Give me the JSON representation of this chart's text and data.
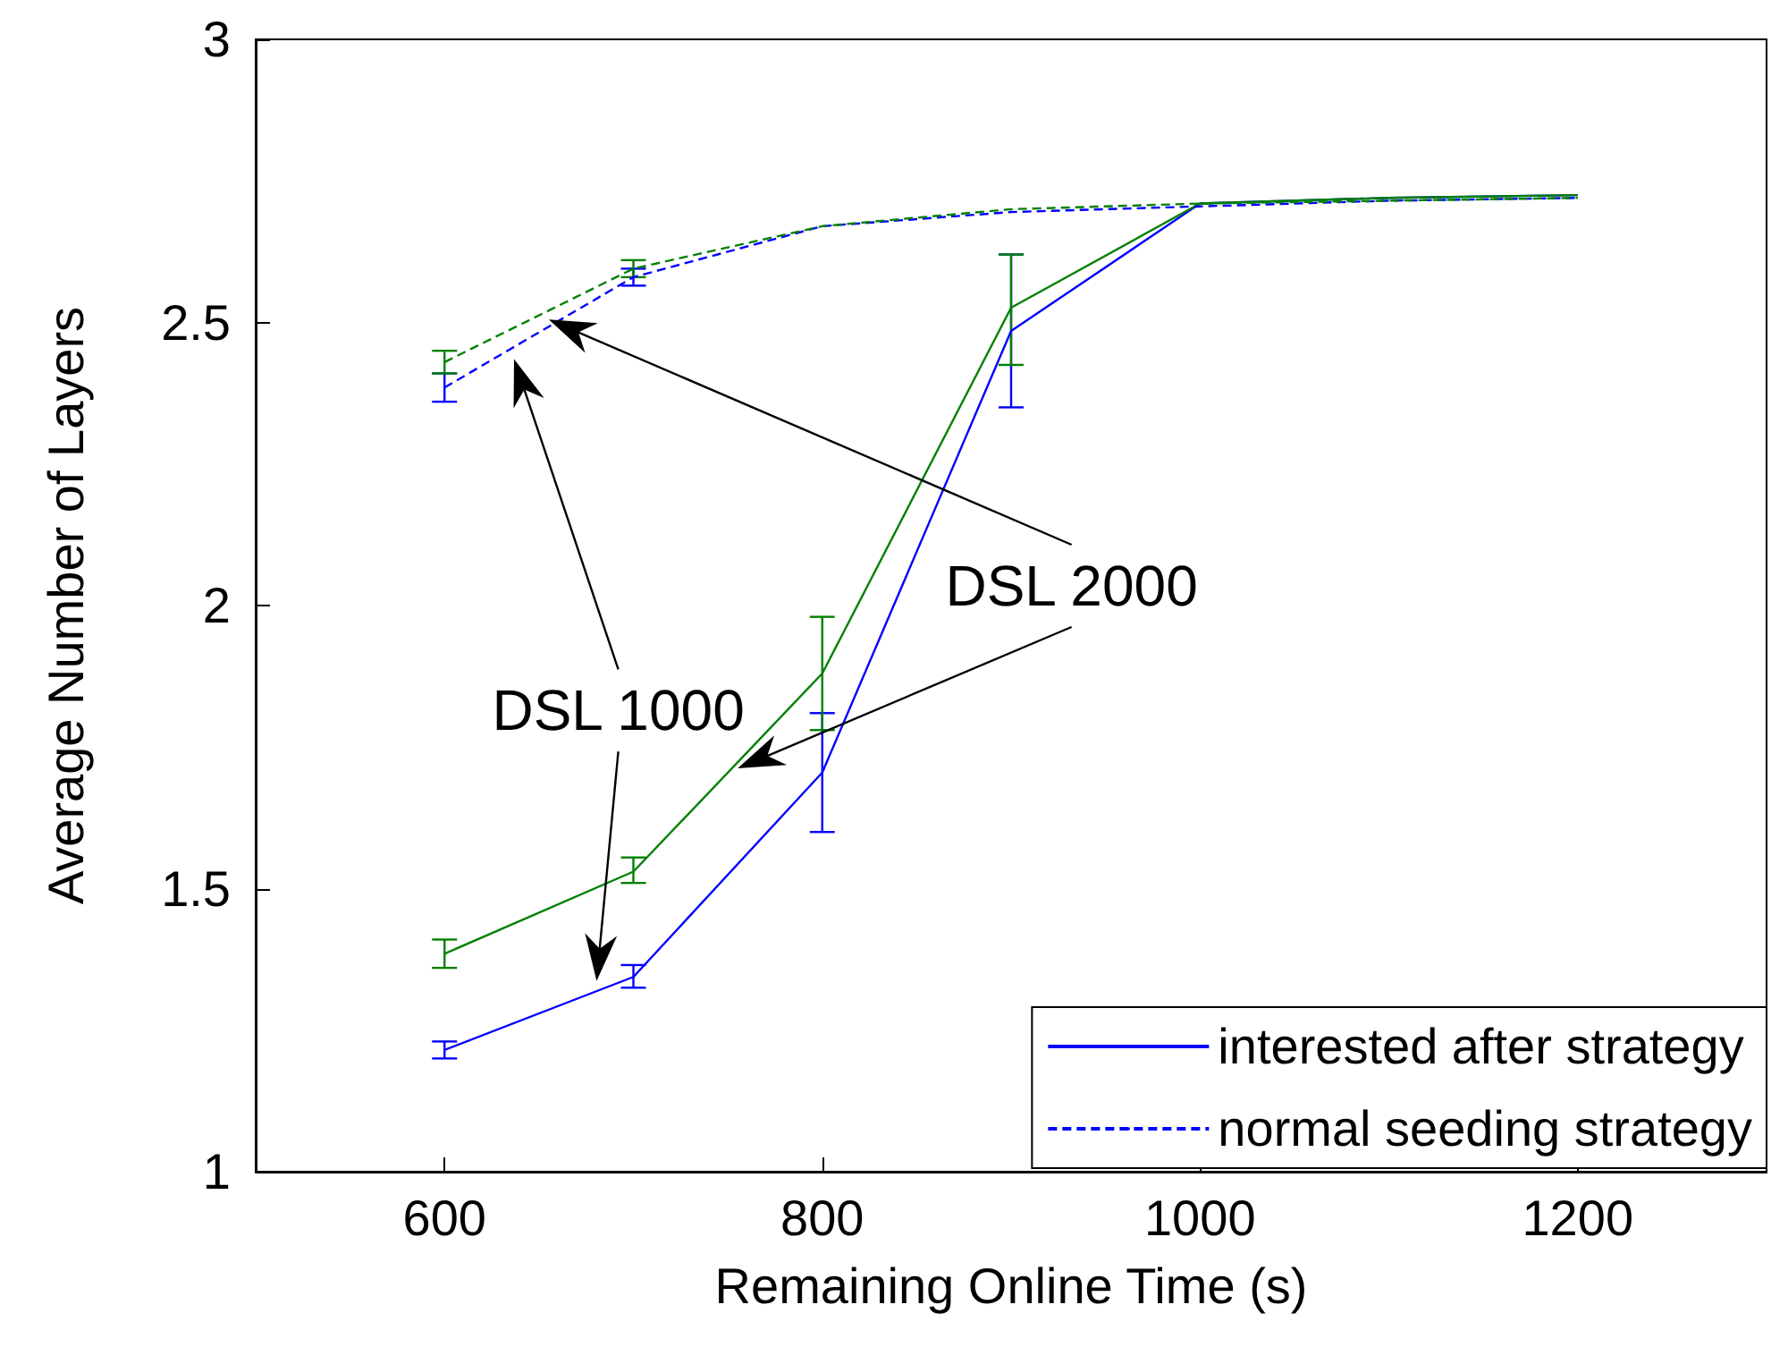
{
  "chart_data": {
    "type": "line",
    "xlabel": "Remaining Online Time (s)",
    "ylabel": "Average Number of Layers",
    "x": [
      600,
      700,
      800,
      900,
      1000,
      1100,
      1200
    ],
    "xlim": [
      500,
      1300
    ],
    "xticks": [
      600,
      800,
      1000,
      1200
    ],
    "ylim": [
      1,
      3
    ],
    "yticks": [
      1,
      1.5,
      2,
      2.5,
      3
    ],
    "grid": false,
    "legend": "bottom right",
    "marker": "none",
    "series": [
      {
        "name": "interested after strategy",
        "color": "#0000ff",
        "line_style": "solid",
        "values": [
          1.215,
          1.344,
          1.705,
          2.485,
          2.71,
          2.72,
          2.725
        ],
        "errors": [
          [
            1.2,
            1.23
          ],
          [
            1.325,
            1.365
          ],
          [
            1.6,
            1.81
          ],
          [
            2.35,
            2.62
          ],
          null,
          null,
          null
        ]
      },
      {
        "color": "#008000",
        "line_style": "solid",
        "values": [
          1.385,
          1.53,
          1.88,
          2.526,
          2.71,
          2.72,
          2.725
        ],
        "errors": [
          [
            1.36,
            1.41
          ],
          [
            1.51,
            1.555
          ],
          [
            1.78,
            1.98
          ],
          [
            2.425,
            2.62
          ],
          null,
          null,
          null
        ]
      },
      {
        "name": "normal seeding strategy",
        "color": "#0000ff",
        "line_style": "dashed",
        "values": [
          2.385,
          2.58,
          2.67,
          2.695,
          2.705,
          2.715,
          2.72
        ],
        "errors": [
          [
            2.36,
            2.41
          ],
          [
            2.565,
            2.595
          ],
          null,
          null,
          null,
          null,
          null
        ]
      },
      {
        "color": "#008000",
        "line_style": "dashed",
        "values": [
          2.43,
          2.595,
          2.67,
          2.7,
          2.71,
          2.715,
          2.72
        ],
        "errors": [
          [
            2.41,
            2.45
          ],
          [
            2.58,
            2.61
          ],
          null,
          null,
          null,
          null,
          null
        ]
      }
    ],
    "annotations": [
      "DSL 2000",
      "DSL 1000"
    ]
  }
}
